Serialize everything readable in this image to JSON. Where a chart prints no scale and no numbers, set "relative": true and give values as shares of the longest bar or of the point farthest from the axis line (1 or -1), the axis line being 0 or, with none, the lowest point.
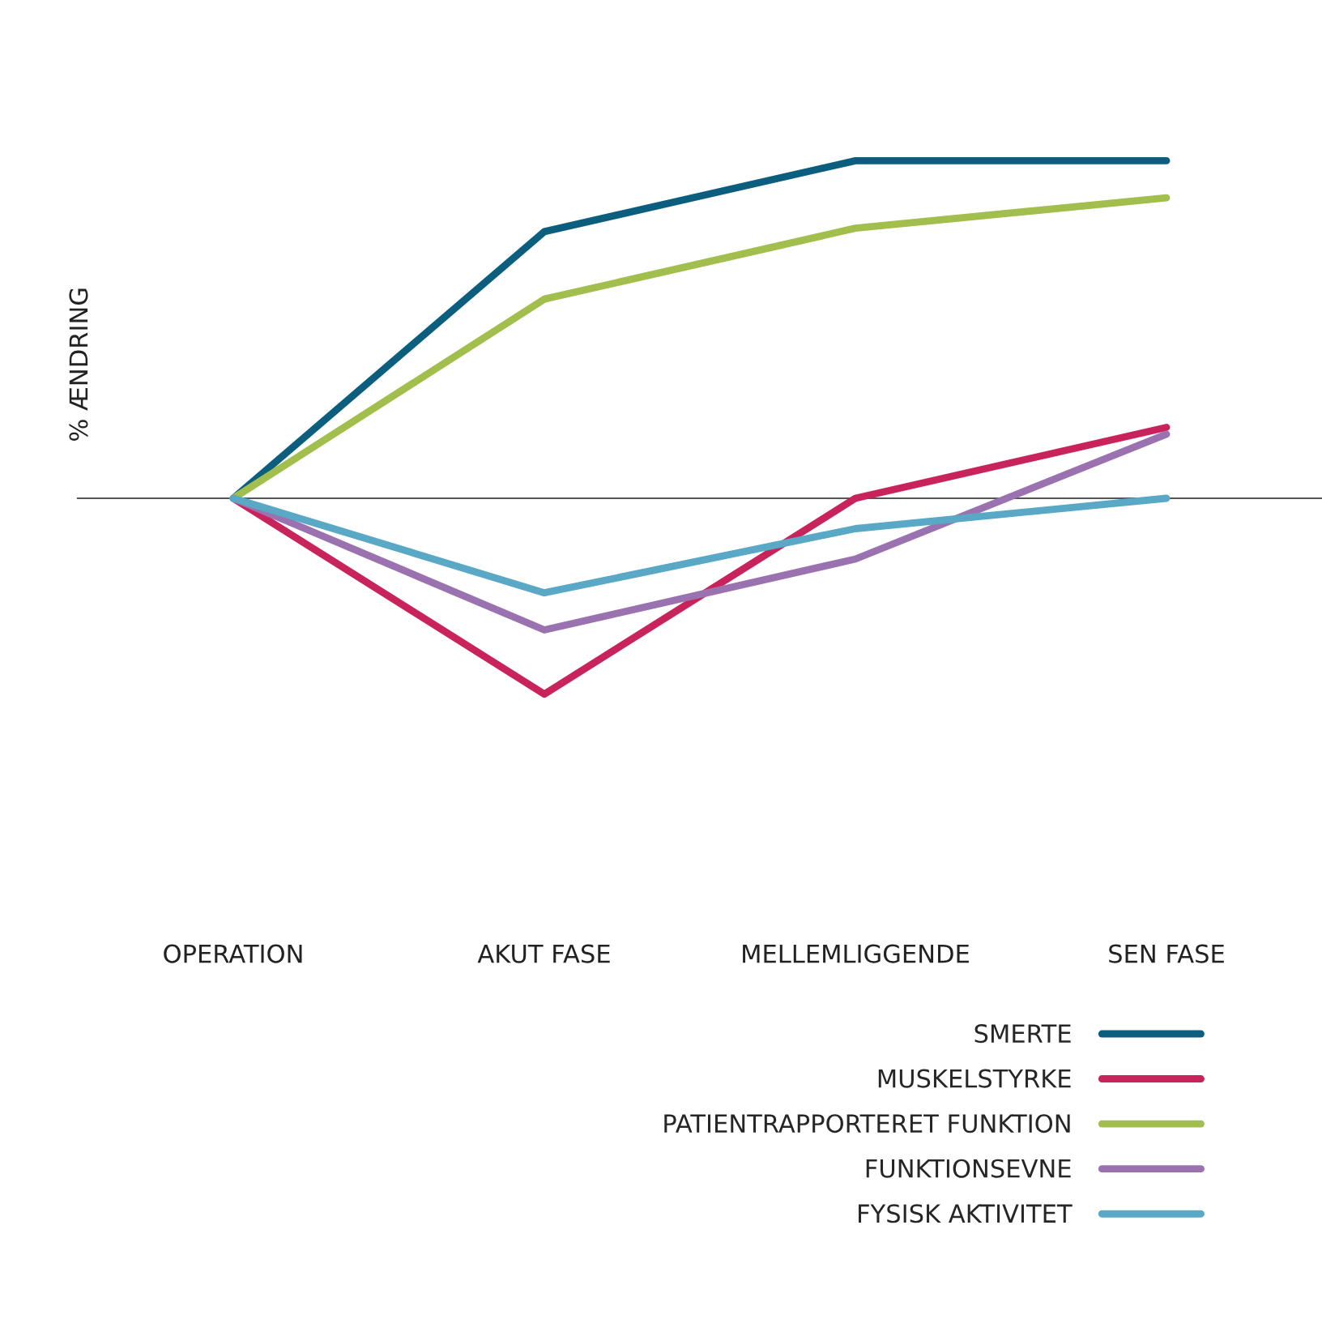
{
  "chart_data": {
    "type": "line",
    "relative": true,
    "ylabel": "% ÆNDRING",
    "categories": [
      "OPERATION",
      "AKUT FASE",
      "MELLEMLIGGENDE",
      "SEN FASE"
    ],
    "series": [
      {
        "name": "SMERTE",
        "color": "#0b5e7e",
        "values": [
          0,
          0.79,
          1,
          1
        ]
      },
      {
        "name": "MUSKELSTYRKE",
        "color": "#c8235a",
        "values": [
          0,
          -0.58,
          0,
          0.21
        ]
      },
      {
        "name": "PATIENTRAPPORTERET FUNKTION",
        "color": "#a2be4c",
        "values": [
          0,
          0.59,
          0.8,
          0.89
        ]
      },
      {
        "name": "FUNKTIONSEVNE",
        "color": "#9b72b0",
        "values": [
          0,
          -0.39,
          -0.18,
          0.19
        ]
      },
      {
        "name": "FYSISK AKTIVITET",
        "color": "#59a8c6",
        "values": [
          0,
          -0.28,
          -0.09,
          0
        ]
      }
    ],
    "legend": "bottom right",
    "grid": false,
    "marker": "none",
    "line_style": "solid"
  }
}
